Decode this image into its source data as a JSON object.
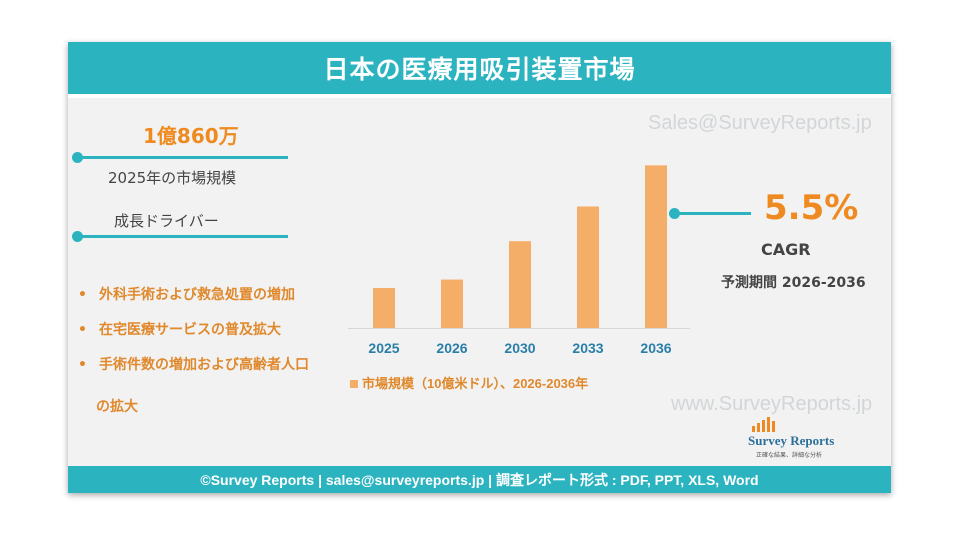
{
  "header": {
    "title": "日本の医療用吸引装置市場"
  },
  "market_size": {
    "value": "1億860万",
    "label": "2025年の市場規模"
  },
  "drivers": {
    "heading": "成長ドライバー",
    "items": [
      "外科手術および救急処置の増加",
      "在宅医療サービスの普及拡大",
      "手術件数の増加および高齢者人口",
      "の拡大"
    ],
    "bullet": "•"
  },
  "cagr": {
    "value": "5.5%",
    "label": "CAGR",
    "period": "予測期間 2026-2036"
  },
  "watermarks": {
    "top": "Sales@SurveyReports.jp",
    "bottom": "www.SurveyReports.jp"
  },
  "logo": {
    "name": "Survey Reports",
    "tagline": "正確な結果、詳細な分析"
  },
  "footer": {
    "text": "©Survey Reports | sales@surveyreports.jp |  調査レポート形式 : PDF, PPT, XLS, Word"
  },
  "colors": {
    "teal": "#2bb3c0",
    "orange": "#ee8a1f",
    "bar": "#f5ae67"
  },
  "chart_data": {
    "type": "bar",
    "categories": [
      "2025",
      "2026",
      "2030",
      "2033",
      "2036"
    ],
    "values": [
      0.1086,
      0.1146,
      0.142,
      0.1668,
      0.1962
    ],
    "legend": "市場規模（10億米ドル）、2026-2036年",
    "ylim": [
      0.08,
      0.2
    ],
    "grid": false,
    "legend_position": "bottom"
  }
}
